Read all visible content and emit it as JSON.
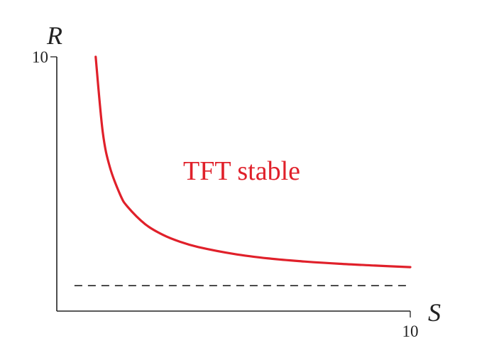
{
  "chart_data": {
    "type": "line",
    "xlabel": "S",
    "ylabel": "R",
    "xlim": [
      0,
      10
    ],
    "ylim": [
      0,
      10
    ],
    "x_ticks": [
      "10"
    ],
    "y_ticks": [
      "10"
    ],
    "grid": false,
    "legend": "none",
    "annotation": "TFT stable",
    "series": [
      {
        "color": "#e0202a",
        "style": "solid",
        "x": [
          1.1,
          1.3,
          1.5,
          1.8,
          2.0,
          2.5,
          3.0,
          3.5,
          4.0,
          5.0,
          6.0,
          7.0,
          8.0,
          9.0,
          10.0
        ],
        "y": [
          10.0,
          7.05,
          5.67,
          4.56,
          4.11,
          3.42,
          3.0,
          2.72,
          2.52,
          2.25,
          2.07,
          1.95,
          1.86,
          1.79,
          1.73
        ]
      },
      {
        "color": "#222222",
        "style": "dashed",
        "x": [
          0.5,
          9.9
        ],
        "y": [
          1.0,
          1.0
        ]
      }
    ],
    "colors": {
      "axis": "#222222",
      "curve": "#e0202a",
      "annotation": "#e0202a"
    }
  }
}
